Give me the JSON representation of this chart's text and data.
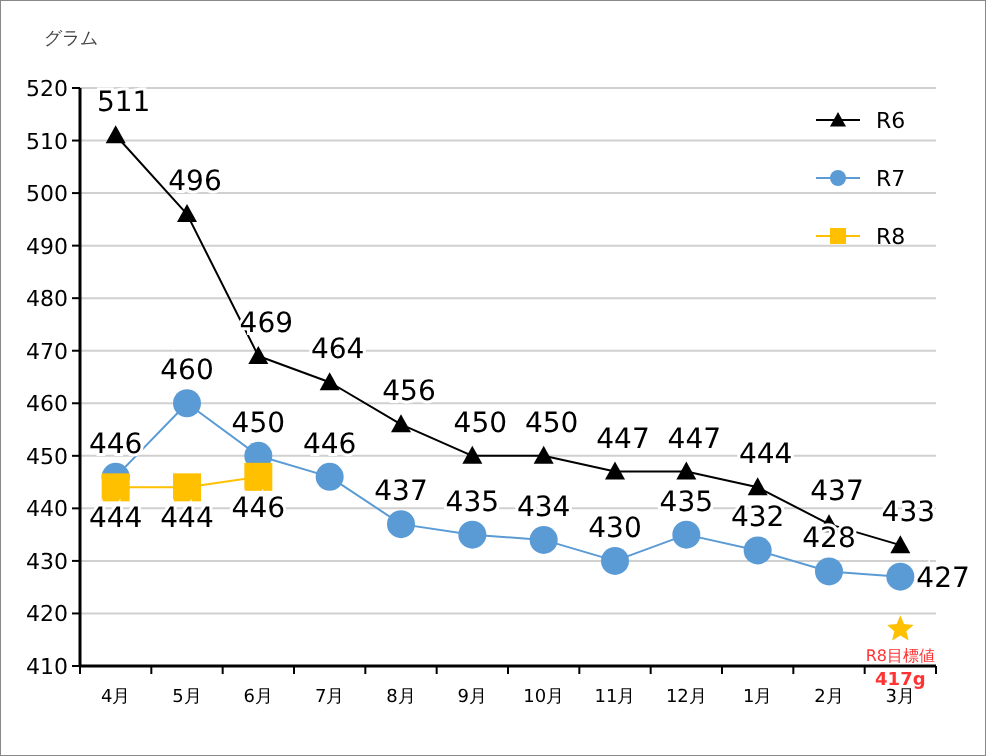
{
  "chart_data": {
    "type": "line",
    "ylabel": "グラム",
    "categories": [
      "4月",
      "5月",
      "6月",
      "7月",
      "8月",
      "9月",
      "10月",
      "11月",
      "12月",
      "1月",
      "2月",
      "3月"
    ],
    "ylim": [
      410,
      520
    ],
    "yticks": [
      410,
      420,
      430,
      440,
      450,
      460,
      470,
      480,
      490,
      500,
      510,
      520
    ],
    "grid": "y",
    "legend": "top right",
    "series": [
      {
        "name": "R6",
        "color": "#000000",
        "marker": "triangle",
        "data_labels": true,
        "values": [
          511,
          496,
          469,
          464,
          456,
          450,
          450,
          447,
          447,
          444,
          437,
          433
        ]
      },
      {
        "name": "R7",
        "color": "#5b9bd5",
        "marker": "circle",
        "data_labels": true,
        "values": [
          446,
          460,
          450,
          446,
          437,
          435,
          434,
          430,
          435,
          432,
          428,
          427
        ]
      },
      {
        "name": "R8",
        "color": "#ffc000",
        "marker": "square",
        "data_labels": true,
        "values": [
          444,
          444,
          446,
          null,
          null,
          null,
          null,
          null,
          null,
          null,
          null,
          null
        ]
      },
      {
        "type": "scatter",
        "color": "#ffc000",
        "marker": "star",
        "values": [
          null,
          null,
          null,
          null,
          null,
          null,
          null,
          null,
          null,
          null,
          null,
          417
        ]
      }
    ],
    "annotations": [
      {
        "text": "R8目標値",
        "x": "3月",
        "y": 417
      },
      {
        "text": "417g",
        "x": "3月",
        "y": 417
      }
    ]
  }
}
